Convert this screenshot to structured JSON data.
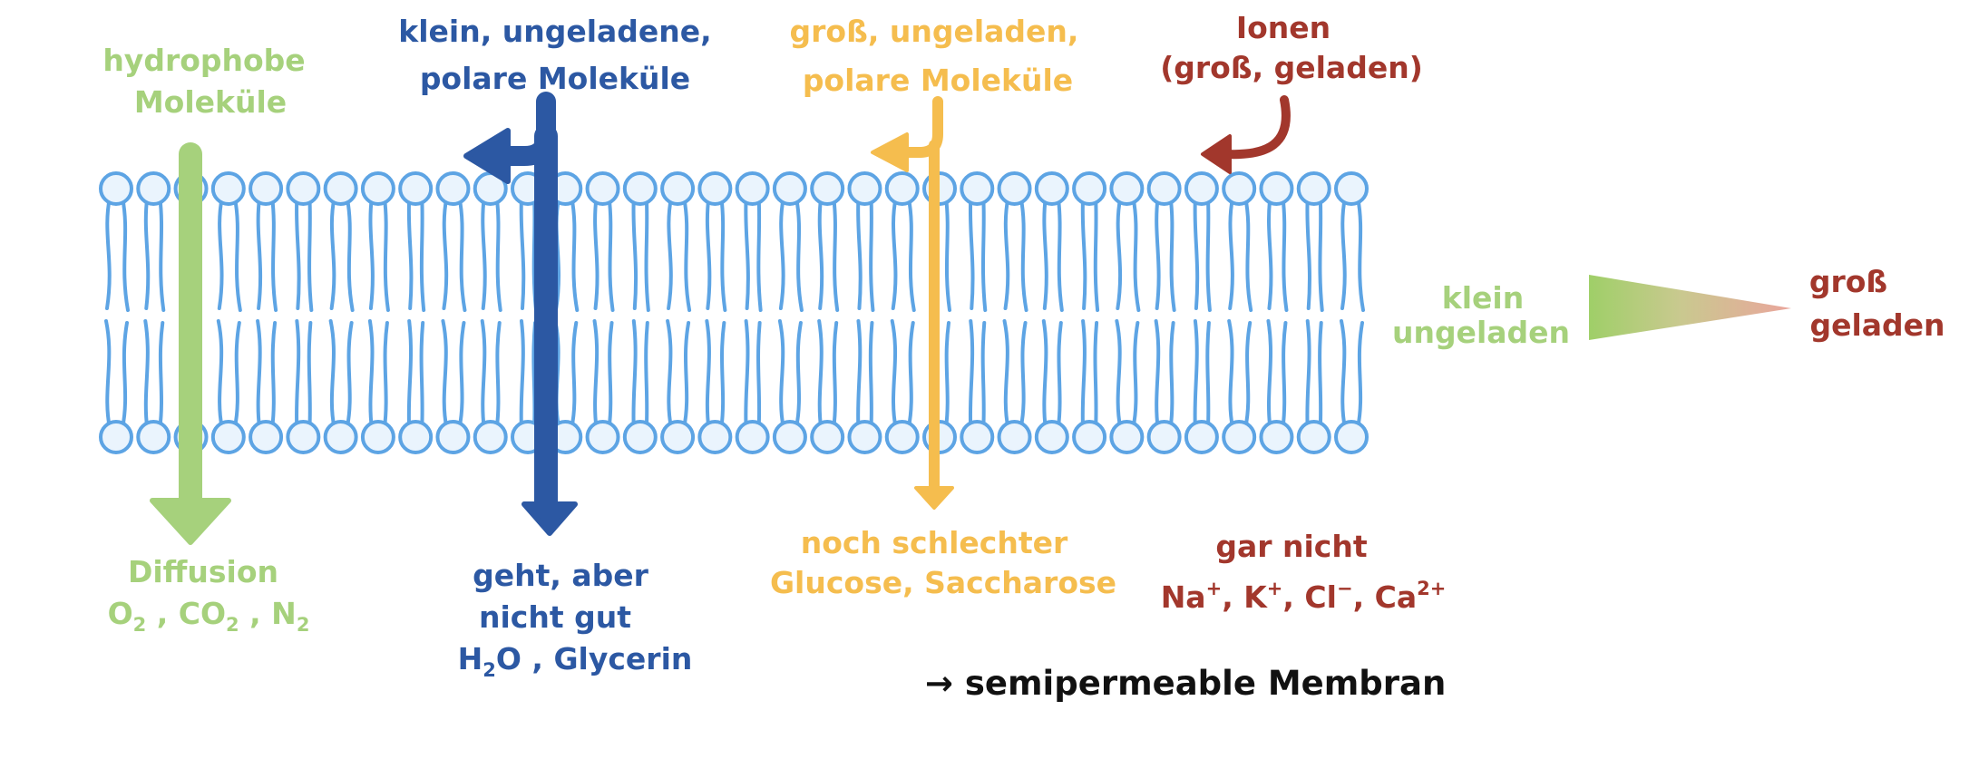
{
  "colors": {
    "membrane": "#5da4e4",
    "head_fill": "#eaf4fd",
    "green": "#a6d17c",
    "blue": "#2c58a3",
    "yellow": "#f5bd4e",
    "red": "#a2372c",
    "black": "#111111"
  },
  "labels": {
    "hydrophobe": [
      "hydrophobe",
      "Moleküle"
    ],
    "klein_polar": [
      "klein, ungeladene,",
      "polare Moleküle"
    ],
    "gross_polar": [
      "groß, ungeladen,",
      "polare  Moleküle"
    ],
    "ionen": [
      "Ionen",
      "(groß, geladen)"
    ],
    "diffusion": [
      "Diffusion",
      "O",
      "2",
      " , CO",
      "2",
      " , N",
      "2"
    ],
    "geht": [
      "geht, aber",
      "nicht gut",
      "H",
      "2",
      "O , Glycerin"
    ],
    "noch": [
      "noch schlechter",
      "Glucose, Saccharose"
    ],
    "gar": [
      "gar nicht",
      "Na",
      "+",
      ", K",
      "+",
      ", Cl",
      "−",
      ", Ca",
      "2+"
    ],
    "legend_left": [
      "klein",
      "ungeladen"
    ],
    "legend_right": [
      "groß",
      "geladen"
    ],
    "conclusion": "→ semipermeable Membran"
  },
  "icons": {
    "membrane": "lipid-bilayer",
    "green_arrow": "arrow-down-icon",
    "blue_arrow": "arrow-down-bounce-icon",
    "yellow_arrow": "arrow-down-bounce-icon",
    "red_arrow": "curved-arrow-icon",
    "gradient": "wedge-gradient-icon"
  }
}
